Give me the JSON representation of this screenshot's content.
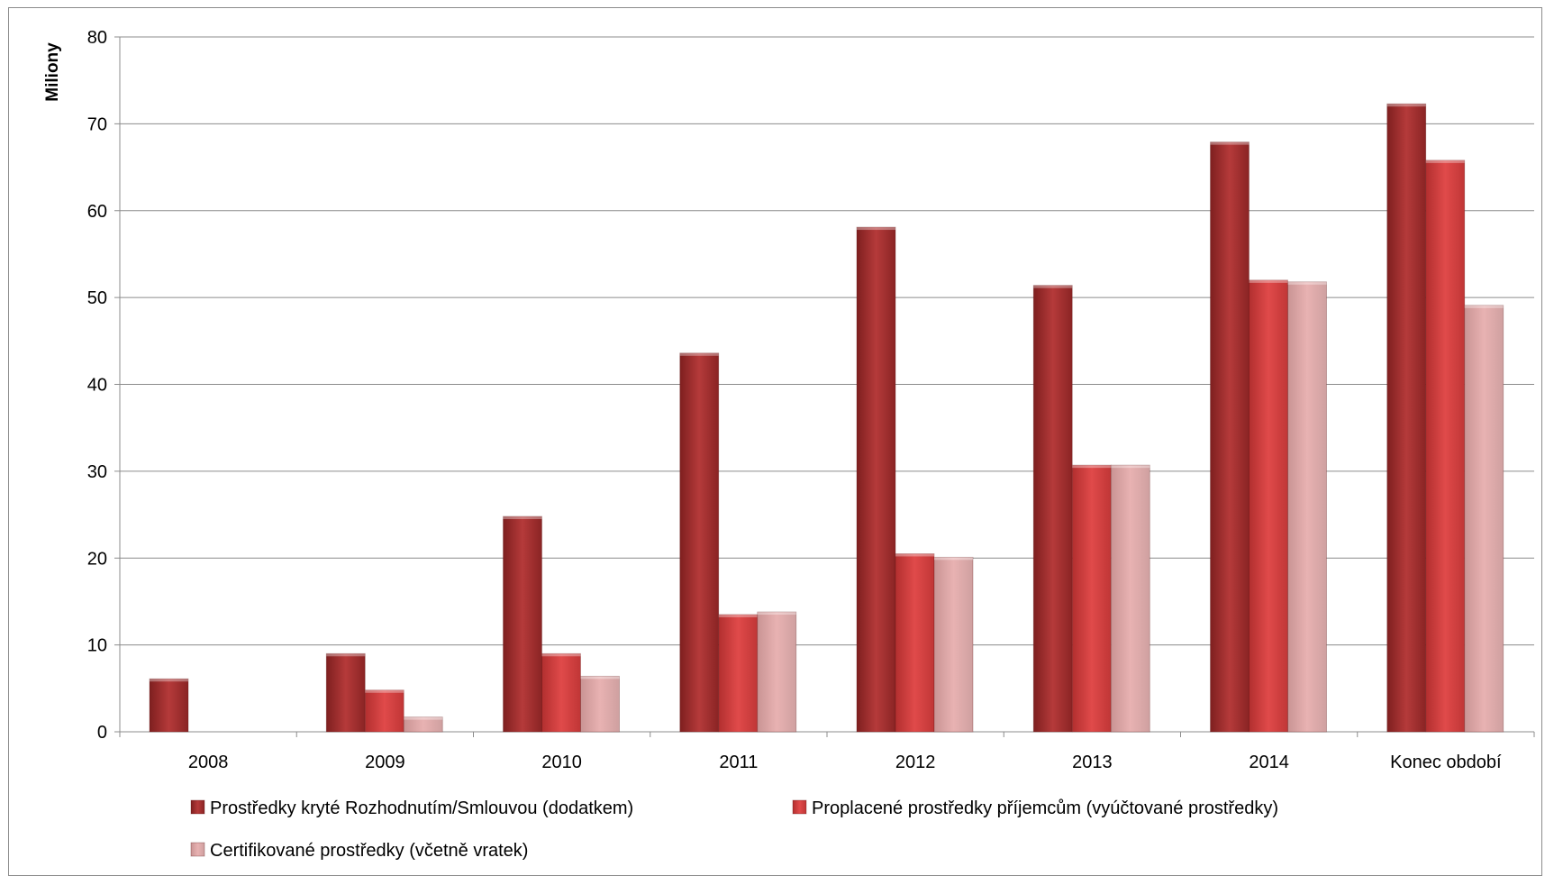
{
  "chart_data": {
    "type": "bar",
    "title": "",
    "xlabel": "",
    "ylabel": "Miliony",
    "ylim": [
      0,
      80
    ],
    "yticks": [
      0,
      10,
      20,
      30,
      40,
      50,
      60,
      70,
      80
    ],
    "grid": true,
    "legend_position": "bottom",
    "categories": [
      "2008",
      "2009",
      "2010",
      "2011",
      "2012",
      "2013",
      "2014",
      "Konec období"
    ],
    "series": [
      {
        "name": "Prostředky kryté Rozhodnutím/Smlouvou (dodatkem)",
        "color": "#b33a3a",
        "values": [
          6.1,
          9.0,
          24.8,
          43.6,
          58.1,
          51.4,
          67.9,
          72.3
        ]
      },
      {
        "name": "Proplacené prostředky příjemcům (vyúčtované prostředky)",
        "color": "#dd4747",
        "values": [
          0,
          4.8,
          9.0,
          13.5,
          20.5,
          30.7,
          52.0,
          65.8
        ]
      },
      {
        "name": "Certifikované prostředky (včetně vratek)",
        "color": "#e3aaaa",
        "values": [
          0,
          1.7,
          6.4,
          13.8,
          20.1,
          30.7,
          51.8,
          49.1
        ]
      }
    ]
  }
}
